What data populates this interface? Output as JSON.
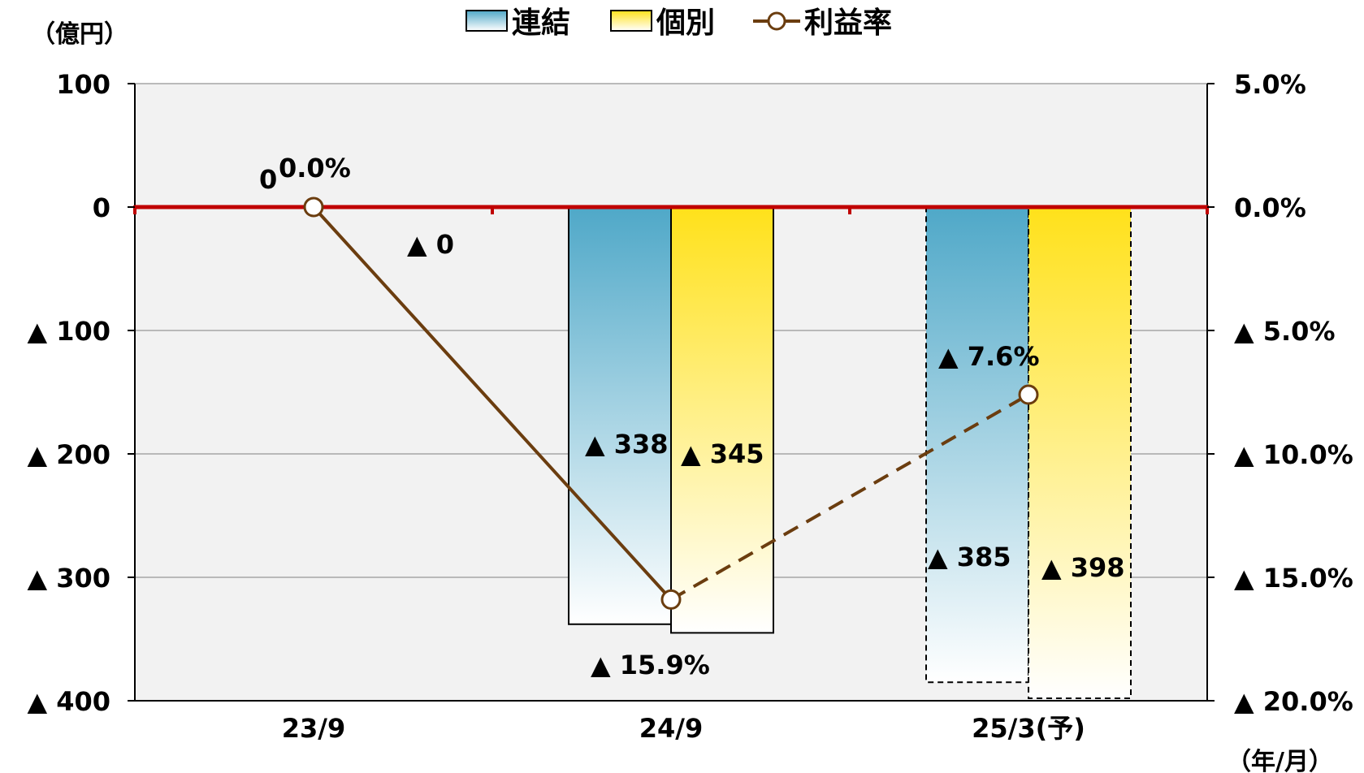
{
  "chart_data": {
    "type": "bar",
    "categories": [
      "23/9",
      "24/9",
      "25/3(予)"
    ],
    "series": [
      {
        "name": "連結",
        "values": [
          0,
          -338,
          -385
        ],
        "labels": [
          "▲ 0",
          "▲ 338",
          "▲ 385"
        ],
        "forecast": [
          false,
          false,
          true
        ]
      },
      {
        "name": "個別",
        "values": [
          0,
          -345,
          -398
        ],
        "labels": [
          "0",
          "▲ 345",
          "▲ 398"
        ],
        "forecast": [
          false,
          false,
          true
        ]
      }
    ],
    "line_series": {
      "name": "利益率",
      "values": [
        0.0,
        -15.9,
        -7.6
      ],
      "labels": [
        "0.0%",
        "▲ 15.9%",
        "▲ 7.6%"
      ],
      "axis": "right",
      "forecast_segment_dashed": true
    },
    "y_left": {
      "unit_label": "（億円）",
      "ylim": [
        -400,
        100
      ],
      "ticks": [
        {
          "value": 100,
          "label": "100"
        },
        {
          "value": 0,
          "label": "0"
        },
        {
          "value": -100,
          "label": "▲ 100"
        },
        {
          "value": -200,
          "label": "▲ 200"
        },
        {
          "value": -300,
          "label": "▲ 300"
        },
        {
          "value": -400,
          "label": "▲ 400"
        }
      ]
    },
    "y_right": {
      "ylim": [
        -20,
        5
      ],
      "ticks": [
        {
          "value": 5,
          "label": "5.0%"
        },
        {
          "value": 0,
          "label": "0.0%"
        },
        {
          "value": -5,
          "label": "▲ 5.0%"
        },
        {
          "value": -10,
          "label": "▲ 10.0%"
        },
        {
          "value": -15,
          "label": "▲ 15.0%"
        },
        {
          "value": -20,
          "label": "▲ 20.0%"
        }
      ]
    },
    "x_unit_label": "（年/月）",
    "grid": true,
    "legend_position": "top-center",
    "colors": {
      "consolidated_top": "#4fa8c8",
      "consolidated_bottom": "#ffffff",
      "standalone_top": "#ffe11a",
      "standalone_bottom": "#ffffff",
      "line": "#6b3d0f",
      "zero_line": "#c00000",
      "plot_bg": "#f2f2f2",
      "grid": "#a6a6a6"
    }
  }
}
